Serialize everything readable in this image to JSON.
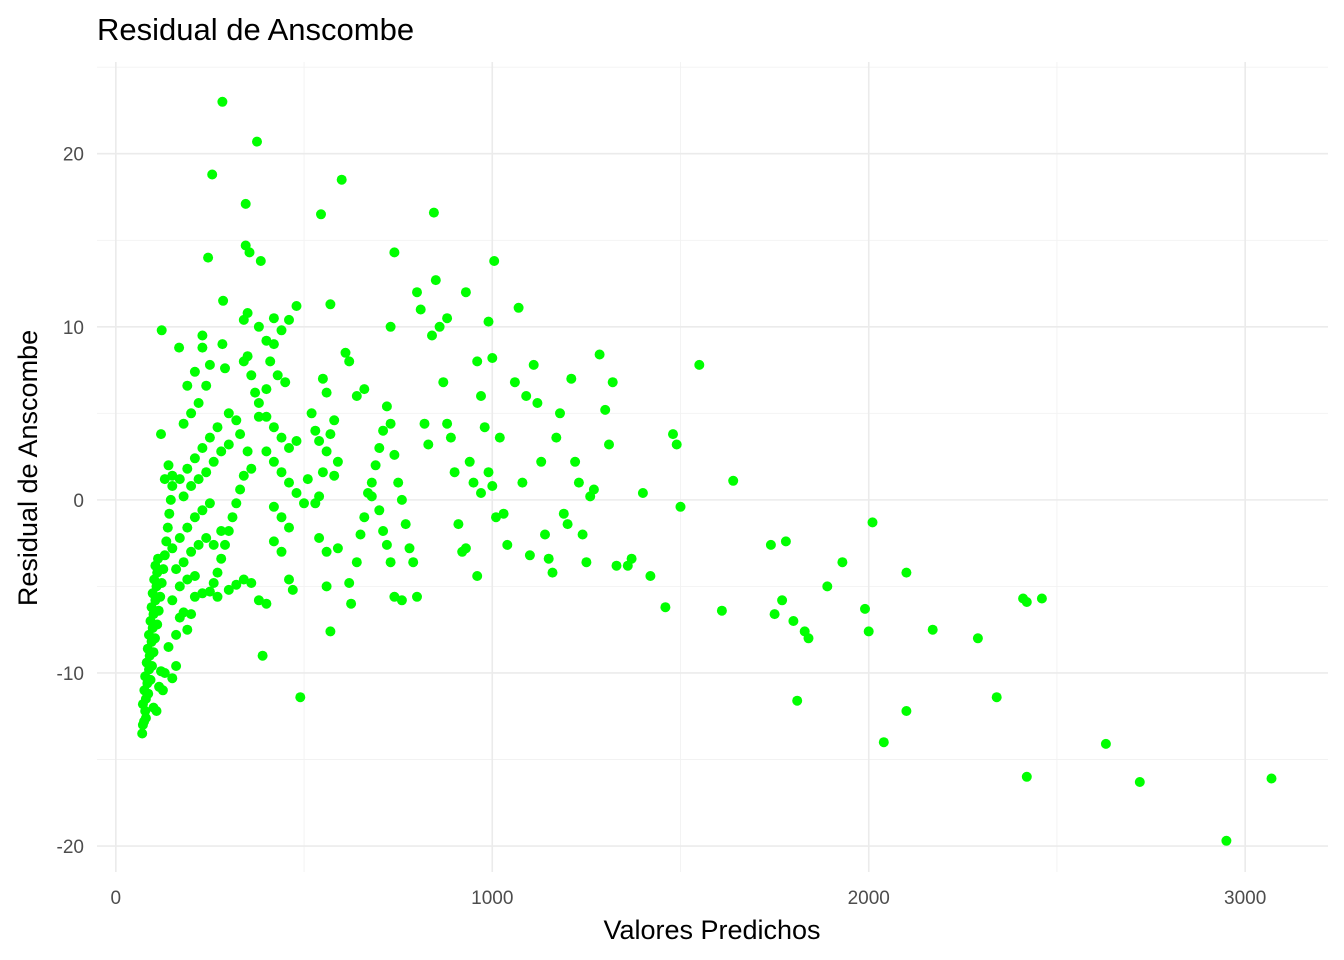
{
  "chart_data": {
    "type": "scatter",
    "title": "Residual de Anscombe",
    "xlabel": "Valores Predichos",
    "ylabel": "Residual de Anscombe",
    "xlim": [
      -50,
      3220
    ],
    "ylim": [
      -21.5,
      25.3
    ],
    "x_ticks": [
      0,
      1000,
      2000,
      3000
    ],
    "y_ticks": [
      -20,
      -10,
      0,
      10,
      20
    ],
    "x_tick_labels": [
      "0",
      "1000",
      "2000",
      "3000"
    ],
    "y_tick_labels": [
      "-20",
      "-10",
      "0",
      "10",
      "20"
    ],
    "grid": true,
    "legend": "none",
    "point_color": "#00FF00",
    "series": [
      {
        "points": [
          [
            70,
            -13.5
          ],
          [
            72,
            -13.0
          ],
          [
            75,
            -12.8
          ],
          [
            78,
            -12.2
          ],
          [
            72,
            -11.8
          ],
          [
            80,
            -11.5
          ],
          [
            76,
            -11.0
          ],
          [
            84,
            -10.6
          ],
          [
            78,
            -10.2
          ],
          [
            88,
            -9.8
          ],
          [
            82,
            -9.4
          ],
          [
            90,
            -9.0
          ],
          [
            85,
            -8.6
          ],
          [
            95,
            -8.2
          ],
          [
            88,
            -7.8
          ],
          [
            98,
            -7.4
          ],
          [
            92,
            -7.0
          ],
          [
            100,
            -6.6
          ],
          [
            95,
            -6.2
          ],
          [
            105,
            -5.8
          ],
          [
            98,
            -5.4
          ],
          [
            108,
            -5.0
          ],
          [
            102,
            -4.6
          ],
          [
            110,
            -4.2
          ],
          [
            105,
            -3.8
          ],
          [
            112,
            -3.4
          ],
          [
            80,
            -12.6
          ],
          [
            86,
            -11.2
          ],
          [
            92,
            -10.4
          ],
          [
            96,
            -9.6
          ],
          [
            100,
            -8.8
          ],
          [
            104,
            -8.0
          ],
          [
            110,
            -7.2
          ],
          [
            114,
            -6.4
          ],
          [
            118,
            -5.6
          ],
          [
            122,
            -4.8
          ],
          [
            126,
            -4.0
          ],
          [
            130,
            -3.2
          ],
          [
            134,
            -2.4
          ],
          [
            138,
            -1.6
          ],
          [
            142,
            -0.8
          ],
          [
            146,
            0.0
          ],
          [
            150,
            0.8
          ],
          [
            120,
            -9.9
          ],
          [
            130,
            -10.0
          ],
          [
            150,
            -10.3
          ],
          [
            160,
            -9.6
          ],
          [
            115,
            -10.8
          ],
          [
            125,
            -11.0
          ],
          [
            108,
            -12.2
          ],
          [
            100,
            -12.0
          ],
          [
            140,
            -8.5
          ],
          [
            160,
            -7.8
          ],
          [
            170,
            -6.8
          ],
          [
            180,
            -6.5
          ],
          [
            190,
            -7.5
          ],
          [
            200,
            -6.6
          ],
          [
            210,
            -5.6
          ],
          [
            150,
            -5.8
          ],
          [
            170,
            -5.0
          ],
          [
            190,
            -4.6
          ],
          [
            210,
            -4.4
          ],
          [
            230,
            -5.4
          ],
          [
            250,
            -5.3
          ],
          [
            270,
            -5.6
          ],
          [
            160,
            -4.0
          ],
          [
            180,
            -3.6
          ],
          [
            200,
            -3.0
          ],
          [
            220,
            -2.6
          ],
          [
            240,
            -2.2
          ],
          [
            260,
            -2.6
          ],
          [
            280,
            -1.8
          ],
          [
            150,
            -2.8
          ],
          [
            170,
            -2.2
          ],
          [
            190,
            -1.6
          ],
          [
            210,
            -1.0
          ],
          [
            230,
            -0.6
          ],
          [
            250,
            -0.2
          ],
          [
            180,
            0.2
          ],
          [
            200,
            0.8
          ],
          [
            220,
            1.2
          ],
          [
            240,
            1.6
          ],
          [
            260,
            2.2
          ],
          [
            280,
            2.8
          ],
          [
            300,
            3.2
          ],
          [
            170,
            1.2
          ],
          [
            190,
            1.8
          ],
          [
            210,
            2.4
          ],
          [
            230,
            3.0
          ],
          [
            250,
            3.6
          ],
          [
            270,
            4.2
          ],
          [
            150,
            1.4
          ],
          [
            140,
            2.0
          ],
          [
            130,
            1.2
          ],
          [
            120,
            3.8
          ],
          [
            180,
            4.4
          ],
          [
            200,
            5.0
          ],
          [
            220,
            5.6
          ],
          [
            240,
            6.6
          ],
          [
            190,
            6.6
          ],
          [
            210,
            7.4
          ],
          [
            230,
            8.8
          ],
          [
            250,
            7.8
          ],
          [
            122,
            9.8
          ],
          [
            168,
            8.8
          ],
          [
            230,
            9.5
          ],
          [
            245,
            14.0
          ],
          [
            256,
            18.8
          ],
          [
            285,
            11.5
          ],
          [
            283,
            23.0
          ],
          [
            283,
            9.0
          ],
          [
            290,
            7.6
          ],
          [
            300,
            5.0
          ],
          [
            320,
            4.6
          ],
          [
            340,
            8.0
          ],
          [
            350,
            8.3
          ],
          [
            360,
            7.2
          ],
          [
            370,
            6.2
          ],
          [
            380,
            4.8
          ],
          [
            330,
            3.8
          ],
          [
            350,
            2.8
          ],
          [
            360,
            1.8
          ],
          [
            340,
            1.4
          ],
          [
            330,
            0.6
          ],
          [
            320,
            -0.2
          ],
          [
            310,
            -1.0
          ],
          [
            300,
            -1.8
          ],
          [
            290,
            -2.6
          ],
          [
            280,
            -3.4
          ],
          [
            270,
            -4.2
          ],
          [
            260,
            -4.8
          ],
          [
            300,
            -5.2
          ],
          [
            320,
            -4.9
          ],
          [
            340,
            -4.6
          ],
          [
            360,
            -4.8
          ],
          [
            380,
            -5.8
          ],
          [
            400,
            -6.0
          ],
          [
            390,
            -9.0
          ],
          [
            345,
            17.1
          ],
          [
            345,
            14.7
          ],
          [
            355,
            14.3
          ],
          [
            375,
            20.7
          ],
          [
            385,
            13.8
          ],
          [
            340,
            10.4
          ],
          [
            350,
            10.8
          ],
          [
            380,
            10.0
          ],
          [
            400,
            9.2
          ],
          [
            420,
            10.5
          ],
          [
            440,
            9.8
          ],
          [
            460,
            10.4
          ],
          [
            480,
            11.2
          ],
          [
            420,
            9.0
          ],
          [
            410,
            8.0
          ],
          [
            430,
            7.2
          ],
          [
            450,
            6.8
          ],
          [
            400,
            6.4
          ],
          [
            380,
            5.6
          ],
          [
            400,
            4.8
          ],
          [
            420,
            4.2
          ],
          [
            440,
            3.6
          ],
          [
            460,
            3.0
          ],
          [
            480,
            3.4
          ],
          [
            400,
            2.8
          ],
          [
            420,
            2.2
          ],
          [
            440,
            1.6
          ],
          [
            460,
            1.0
          ],
          [
            480,
            0.4
          ],
          [
            500,
            -0.2
          ],
          [
            420,
            -0.4
          ],
          [
            440,
            -1.0
          ],
          [
            460,
            -1.6
          ],
          [
            420,
            -2.4
          ],
          [
            440,
            -3.0
          ],
          [
            460,
            -4.6
          ],
          [
            470,
            -5.2
          ],
          [
            490,
            -11.4
          ],
          [
            510,
            1.2
          ],
          [
            520,
            5.0
          ],
          [
            530,
            4.0
          ],
          [
            540,
            3.4
          ],
          [
            550,
            7.0
          ],
          [
            560,
            6.2
          ],
          [
            570,
            11.3
          ],
          [
            545,
            16.5
          ],
          [
            580,
            1.4
          ],
          [
            590,
            2.2
          ],
          [
            600,
            18.5
          ],
          [
            610,
            8.5
          ],
          [
            620,
            8.0
          ],
          [
            580,
            4.6
          ],
          [
            570,
            3.8
          ],
          [
            560,
            2.8
          ],
          [
            550,
            1.6
          ],
          [
            540,
            0.2
          ],
          [
            530,
            -0.2
          ],
          [
            540,
            -2.2
          ],
          [
            560,
            -3.0
          ],
          [
            590,
            -2.8
          ],
          [
            560,
            -5.0
          ],
          [
            570,
            -7.6
          ],
          [
            620,
            -4.8
          ],
          [
            625,
            -6.0
          ],
          [
            640,
            -3.6
          ],
          [
            650,
            -2.0
          ],
          [
            660,
            -1.0
          ],
          [
            670,
            0.4
          ],
          [
            680,
            1.0
          ],
          [
            690,
            2.0
          ],
          [
            700,
            3.0
          ],
          [
            710,
            4.0
          ],
          [
            720,
            5.4
          ],
          [
            730,
            4.4
          ],
          [
            740,
            2.6
          ],
          [
            750,
            1.0
          ],
          [
            760,
            0.0
          ],
          [
            770,
            -1.4
          ],
          [
            780,
            -2.8
          ],
          [
            790,
            -3.6
          ],
          [
            730,
            10.0
          ],
          [
            740,
            14.3
          ],
          [
            640,
            6.0
          ],
          [
            660,
            6.4
          ],
          [
            680,
            0.2
          ],
          [
            700,
            -0.6
          ],
          [
            710,
            -1.8
          ],
          [
            720,
            -2.6
          ],
          [
            730,
            -3.6
          ],
          [
            740,
            -5.6
          ],
          [
            760,
            -5.8
          ],
          [
            800,
            -5.6
          ],
          [
            800,
            12.0
          ],
          [
            810,
            11.0
          ],
          [
            820,
            4.4
          ],
          [
            830,
            3.2
          ],
          [
            840,
            9.5
          ],
          [
            850,
            12.7
          ],
          [
            845,
            16.6
          ],
          [
            860,
            10.0
          ],
          [
            870,
            6.8
          ],
          [
            880,
            4.4
          ],
          [
            890,
            3.6
          ],
          [
            880,
            10.5
          ],
          [
            900,
            1.6
          ],
          [
            910,
            -1.4
          ],
          [
            920,
            -3.0
          ],
          [
            930,
            -2.8
          ],
          [
            940,
            2.2
          ],
          [
            950,
            1.0
          ],
          [
            960,
            8.0
          ],
          [
            970,
            6.0
          ],
          [
            980,
            4.2
          ],
          [
            990,
            1.6
          ],
          [
            1000,
            0.8
          ],
          [
            1010,
            -1.0
          ],
          [
            1000,
            8.2
          ],
          [
            990,
            10.3
          ],
          [
            1005,
            13.8
          ],
          [
            960,
            -4.4
          ],
          [
            930,
            12.0
          ],
          [
            970,
            0.4
          ],
          [
            1020,
            3.6
          ],
          [
            1030,
            -0.8
          ],
          [
            1040,
            -2.6
          ],
          [
            1060,
            6.8
          ],
          [
            1070,
            11.1
          ],
          [
            1080,
            1.0
          ],
          [
            1090,
            6.0
          ],
          [
            1100,
            -3.2
          ],
          [
            1110,
            7.8
          ],
          [
            1120,
            5.6
          ],
          [
            1130,
            2.2
          ],
          [
            1140,
            -2.0
          ],
          [
            1150,
            -3.4
          ],
          [
            1160,
            -4.2
          ],
          [
            1170,
            3.6
          ],
          [
            1180,
            5.0
          ],
          [
            1190,
            -0.8
          ],
          [
            1200,
            -1.4
          ],
          [
            1210,
            7.0
          ],
          [
            1220,
            2.2
          ],
          [
            1230,
            1.0
          ],
          [
            1240,
            -2.0
          ],
          [
            1250,
            -3.6
          ],
          [
            1260,
            0.2
          ],
          [
            1270,
            0.6
          ],
          [
            1285,
            8.4
          ],
          [
            1300,
            5.2
          ],
          [
            1310,
            3.2
          ],
          [
            1320,
            6.8
          ],
          [
            1330,
            -3.8
          ],
          [
            1360,
            -3.8
          ],
          [
            1370,
            -3.4
          ],
          [
            1400,
            0.4
          ],
          [
            1420,
            -4.4
          ],
          [
            1460,
            -6.2
          ],
          [
            1480,
            3.8
          ],
          [
            1490,
            3.2
          ],
          [
            1500,
            -0.4
          ],
          [
            1550,
            7.8
          ],
          [
            1610,
            -6.4
          ],
          [
            1640,
            1.1
          ],
          [
            1740,
            -2.6
          ],
          [
            1750,
            -6.6
          ],
          [
            1770,
            -5.8
          ],
          [
            1780,
            -2.4
          ],
          [
            1800,
            -7.0
          ],
          [
            1810,
            -11.6
          ],
          [
            1830,
            -7.6
          ],
          [
            1840,
            -8.0
          ],
          [
            1890,
            -5.0
          ],
          [
            1930,
            -3.6
          ],
          [
            1990,
            -6.3
          ],
          [
            2000,
            -7.6
          ],
          [
            2010,
            -1.3
          ],
          [
            2040,
            -14.0
          ],
          [
            2100,
            -12.2
          ],
          [
            2100,
            -4.2
          ],
          [
            2170,
            -7.5
          ],
          [
            2290,
            -8.0
          ],
          [
            2340,
            -11.4
          ],
          [
            2410,
            -5.7
          ],
          [
            2420,
            -5.9
          ],
          [
            2420,
            -16.0
          ],
          [
            2460,
            -5.7
          ],
          [
            2630,
            -14.1
          ],
          [
            2720,
            -16.3
          ],
          [
            2950,
            -19.7
          ],
          [
            3070,
            -16.1
          ]
        ]
      }
    ]
  }
}
